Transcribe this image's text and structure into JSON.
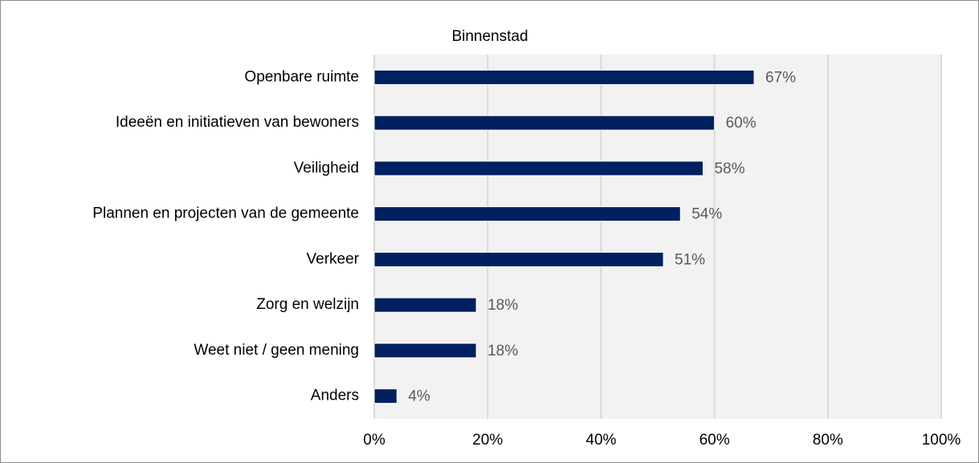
{
  "chart_data": {
    "type": "bar",
    "orientation": "horizontal",
    "title": "Binnenstad",
    "categories": [
      "Openbare ruimte",
      "Ideeën en initiatieven van bewoners",
      "Veiligheid",
      "Plannen en projecten van de gemeente",
      "Verkeer",
      "Zorg en welzijn",
      "Weet niet / geen mening",
      "Anders"
    ],
    "values": [
      67,
      60,
      58,
      54,
      51,
      18,
      18,
      4
    ],
    "value_labels": [
      "67%",
      "60%",
      "58%",
      "54%",
      "51%",
      "18%",
      "18%",
      "4%"
    ],
    "color": "#002060",
    "xlim": [
      0,
      100
    ],
    "xticks": [
      {
        "value": 0,
        "label": "0%"
      },
      {
        "value": 20,
        "label": "20%"
      },
      {
        "value": 40,
        "label": "40%"
      },
      {
        "value": 60,
        "label": "60%"
      },
      {
        "value": 80,
        "label": "80%"
      },
      {
        "value": 100,
        "label": "100%"
      }
    ],
    "grid": true
  }
}
